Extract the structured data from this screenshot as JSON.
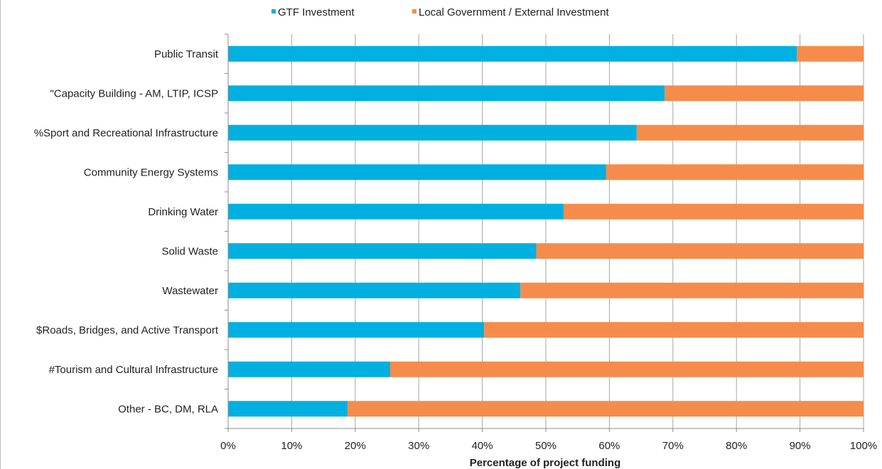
{
  "colors": {
    "gtf": "#00b0e0",
    "local": "#f58c4b",
    "grid": "#a6a6a6",
    "axis": "#8c8c8c",
    "frame": "#bfbfbf"
  },
  "legend": [
    {
      "label": "GTF Investment",
      "color_key": "gtf"
    },
    {
      "label": "Local Government / External Investment",
      "color_key": "local"
    }
  ],
  "chart_data": {
    "type": "bar",
    "orientation": "horizontal",
    "stacked": "percent",
    "categories": [
      "Public Transit",
      "\"Capacity Building - AM, LTIP, ICSP",
      "%Sport and Recreational Infrastructure",
      "Community Energy Systems",
      "Drinking Water",
      "Solid Waste",
      "Wastewater",
      "$Roads, Bridges, and Active Transport",
      "#Tourism and Cultural Infrastructure",
      "Other - BC, DM, RLA"
    ],
    "series": [
      {
        "name": "GTF Investment",
        "values": [
          89.5,
          68.7,
          64.3,
          59.5,
          52.8,
          48.5,
          46.0,
          40.3,
          25.5,
          18.8
        ]
      },
      {
        "name": "Local Government / External Investment",
        "values": [
          10.5,
          31.3,
          35.7,
          40.5,
          47.2,
          51.5,
          54.0,
          59.7,
          74.5,
          81.2
        ]
      }
    ],
    "xlim": [
      0,
      100
    ],
    "xticks": [
      "0%",
      "10%",
      "20%",
      "30%",
      "40%",
      "50%",
      "60%",
      "70%",
      "80%",
      "90%",
      "100%"
    ],
    "xlabel": "Percentage of project funding",
    "ylabel": "",
    "title": "",
    "grid": true,
    "legend_position": "top"
  }
}
